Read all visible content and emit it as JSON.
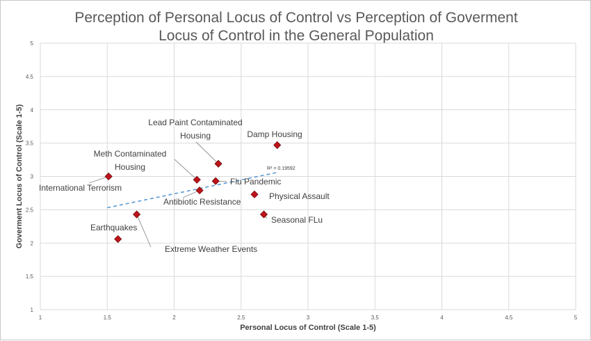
{
  "chart_data": {
    "type": "scatter",
    "title_line1": "Perception of Personal Locus of Control vs Perception of Goverment",
    "title_line2": "Locus of Control in the General Population",
    "xlabel": "Personal Locus of Control (Scale 1-5)",
    "ylabel": "Goverment Locus of Control  (Scale 1-5)",
    "xlim": [
      1,
      5
    ],
    "ylim": [
      1,
      5
    ],
    "xticks": [
      "1",
      "1.5",
      "2",
      "2.5",
      "3",
      "3.5",
      "4",
      "4.5",
      "5"
    ],
    "yticks": [
      "1",
      "1.5",
      "2",
      "2.5",
      "3",
      "3.5",
      "4",
      "4.5",
      "5"
    ],
    "grid": true,
    "marker_color": "#c0121a",
    "trendline": {
      "style": "dashed",
      "color": "#5b9bd5",
      "x": [
        1.5,
        2.77
      ],
      "y": [
        2.53,
        3.06
      ],
      "r2_label": "R² = 0.19592"
    },
    "points": [
      {
        "label": "International Terrorism",
        "x": 1.51,
        "y": 3.0
      },
      {
        "label": "Earthquakes",
        "x": 1.58,
        "y": 2.06
      },
      {
        "label": "Extreme Weather  Events",
        "x": 1.72,
        "y": 2.43
      },
      {
        "label": "Meth Contaminated Housing",
        "x": 2.17,
        "y": 2.95
      },
      {
        "label": "Antibiotic Resistance",
        "x": 2.19,
        "y": 2.79
      },
      {
        "label": "Flu Pandemic",
        "x": 2.31,
        "y": 2.93
      },
      {
        "label": "Lead Paint Contaminated Housing",
        "x": 2.33,
        "y": 3.19
      },
      {
        "label": "Physical Assault",
        "x": 2.6,
        "y": 2.73
      },
      {
        "label": "Seasonal FLu",
        "x": 2.67,
        "y": 2.43
      },
      {
        "label": "Damp Housing",
        "x": 2.77,
        "y": 3.47
      }
    ]
  }
}
